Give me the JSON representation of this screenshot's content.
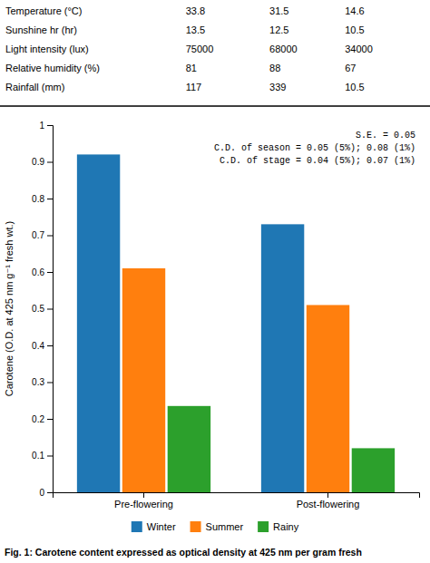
{
  "chart_data": {
    "type": "bar",
    "categories": [
      "Pre-flowering",
      "Post-flowering"
    ],
    "series": [
      {
        "name": "Winter",
        "values": [
          0.92,
          0.73
        ]
      },
      {
        "name": "Summer",
        "values": [
          0.61,
          0.51
        ]
      },
      {
        "name": "Rainy",
        "values": [
          0.235,
          0.12
        ]
      }
    ],
    "ylabel": "Carotene (O.D. at 425 nm g⁻¹ fresh wt.)",
    "ylim": [
      0,
      1.0
    ],
    "yticks": [
      0,
      0.1,
      0.2,
      0.3,
      0.4,
      0.5,
      0.6,
      0.7,
      0.8,
      0.9,
      1
    ],
    "grid": false,
    "legend": "bottom",
    "annotations": [
      "S.E. = 0.05",
      "C.D. of season = 0.05 (5%); 0.08 (1%)",
      "C.D. of stage = 0.04 (5%); 0.07 (1%)"
    ],
    "caption": "Fig. 1: Carotene content expressed as optical density at 425 nm per gram fresh",
    "table": {
      "rows": [
        "Temperature (°C)",
        "Sunshine hr (hr)",
        "Light intensity (lux)",
        "Relative humidity (%)",
        "Rainfall (mm)"
      ],
      "values": [
        [
          33.8,
          31.5,
          14.6
        ],
        [
          13.5,
          12.5,
          10.5
        ],
        [
          75000,
          68000,
          34000
        ],
        [
          81,
          88,
          67
        ],
        [
          117,
          339,
          10.5
        ]
      ]
    }
  }
}
